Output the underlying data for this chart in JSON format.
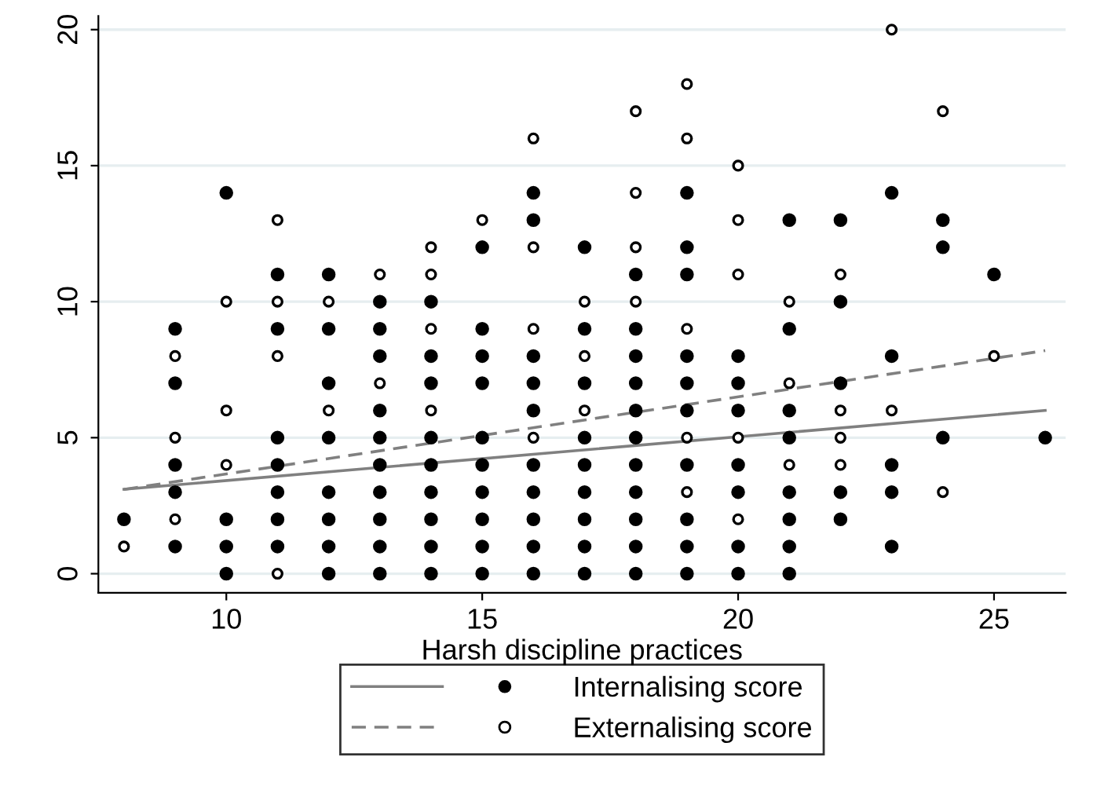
{
  "chart_data": {
    "type": "scatter",
    "xlabel": "Harsh discipline practices",
    "xlim": [
      7.5,
      26.4
    ],
    "ylim": [
      -0.7,
      20.5
    ],
    "xticks": [
      10,
      15,
      20,
      25
    ],
    "yticks": [
      0,
      5,
      10,
      15,
      20
    ],
    "grid": "y",
    "legend": "bottom",
    "series": [
      {
        "type": "line",
        "color": "#808080",
        "line_style": "solid",
        "marker": "none",
        "x": [
          8,
          26
        ],
        "values": [
          3.1,
          6.0
        ]
      },
      {
        "type": "line",
        "color": "#808080",
        "line_style": "dashed",
        "marker": "none",
        "x": [
          8,
          26
        ],
        "values": [
          3.1,
          8.2
        ]
      },
      {
        "name": "Internalising score",
        "color": "#000000",
        "marker": "circle",
        "x": [
          8,
          9,
          9,
          9,
          9,
          9,
          10,
          10,
          10,
          10,
          11,
          11,
          11,
          11,
          11,
          11,
          11,
          12,
          12,
          12,
          12,
          12,
          12,
          12,
          12,
          13,
          13,
          13,
          13,
          13,
          13,
          13,
          13,
          13,
          13,
          14,
          14,
          14,
          14,
          14,
          14,
          14,
          14,
          14,
          15,
          15,
          15,
          15,
          15,
          15,
          15,
          15,
          15,
          15,
          16,
          16,
          16,
          16,
          16,
          16,
          16,
          16,
          16,
          16,
          17,
          17,
          17,
          17,
          17,
          17,
          17,
          17,
          17,
          18,
          18,
          18,
          18,
          18,
          18,
          18,
          18,
          18,
          18,
          18,
          19,
          19,
          19,
          19,
          19,
          19,
          19,
          19,
          19,
          19,
          20,
          20,
          20,
          20,
          20,
          20,
          20,
          21,
          21,
          21,
          21,
          21,
          21,
          21,
          21,
          22,
          22,
          22,
          22,
          22,
          23,
          23,
          23,
          23,
          23,
          24,
          24,
          24,
          25,
          26
        ],
        "values": [
          2,
          9,
          7,
          4,
          3,
          1,
          14,
          2,
          1,
          0,
          11,
          9,
          5,
          4,
          3,
          2,
          1,
          11,
          9,
          7,
          5,
          3,
          2,
          1,
          0,
          10,
          9,
          8,
          6,
          5,
          4,
          3,
          2,
          1,
          0,
          10,
          8,
          7,
          5,
          4,
          3,
          2,
          1,
          0,
          12,
          9,
          8,
          7,
          5,
          4,
          3,
          2,
          1,
          0,
          14,
          13,
          8,
          7,
          6,
          4,
          3,
          2,
          1,
          0,
          12,
          9,
          7,
          5,
          4,
          3,
          2,
          1,
          0,
          11,
          9,
          8,
          7,
          6,
          5,
          4,
          3,
          2,
          1,
          0,
          14,
          12,
          11,
          8,
          7,
          6,
          4,
          2,
          1,
          0,
          8,
          7,
          6,
          4,
          3,
          1,
          0,
          13,
          9,
          6,
          5,
          3,
          2,
          1,
          0,
          13,
          10,
          7,
          3,
          2,
          14,
          8,
          4,
          3,
          1,
          13,
          12,
          5,
          11,
          5
        ]
      },
      {
        "name": "Externalising score",
        "color": "#ffffff",
        "marker": "circle",
        "x": [
          8,
          9,
          9,
          9,
          10,
          10,
          10,
          11,
          11,
          11,
          11,
          12,
          12,
          13,
          13,
          14,
          14,
          14,
          14,
          15,
          16,
          16,
          16,
          16,
          17,
          17,
          17,
          18,
          18,
          18,
          18,
          19,
          19,
          19,
          19,
          19,
          20,
          20,
          20,
          20,
          20,
          21,
          21,
          21,
          22,
          22,
          22,
          22,
          23,
          23,
          24,
          24,
          25
        ],
        "values": [
          1,
          8,
          5,
          2,
          10,
          6,
          4,
          13,
          10,
          8,
          0,
          10,
          6,
          11,
          7,
          12,
          11,
          9,
          6,
          13,
          16,
          12,
          9,
          5,
          10,
          8,
          6,
          17,
          14,
          12,
          10,
          18,
          16,
          9,
          5,
          3,
          15,
          13,
          11,
          5,
          2,
          10,
          7,
          4,
          11,
          6,
          5,
          4,
          20,
          6,
          17,
          3,
          8
        ]
      }
    ]
  }
}
